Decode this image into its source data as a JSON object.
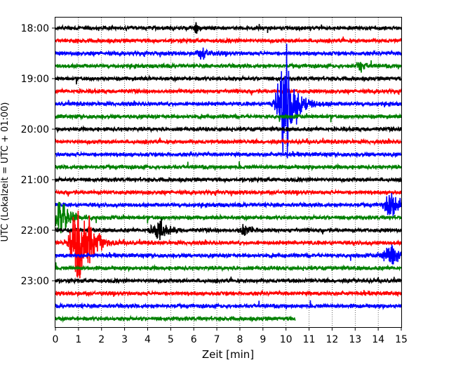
{
  "chart_data": {
    "type": "line",
    "title": "",
    "xlabel": "Zeit  [min]",
    "ylabel": "UTC (Lokalzeit = UTC + 01:00)",
    "xlim": [
      0,
      15
    ],
    "x_ticks": [
      "0",
      "1",
      "2",
      "3",
      "4",
      "5",
      "6",
      "7",
      "8",
      "9",
      "10",
      "11",
      "12",
      "13",
      "14",
      "15"
    ],
    "y_ticks": [
      {
        "label": "18:00",
        "trace": 0
      },
      {
        "label": "19:00",
        "trace": 4
      },
      {
        "label": "20:00",
        "trace": 8
      },
      {
        "label": "21:00",
        "trace": 12
      },
      {
        "label": "22:00",
        "trace": 16
      },
      {
        "label": "23:00",
        "trace": 20
      }
    ],
    "grid": "vertical dotted at each minute",
    "legend": "none",
    "trace_interval_min": 15,
    "trace_count": 24,
    "colors": [
      "#000000",
      "#ff0000",
      "#0000ff",
      "#008000"
    ],
    "last_trace_end_min": 10.4,
    "events": [
      {
        "trace": 6,
        "center_min": 10.0,
        "amplitude": 2.9,
        "spread_min": 0.55
      },
      {
        "trace": 15,
        "center_min": 0.3,
        "amplitude": 0.9,
        "spread_min": 0.55
      },
      {
        "trace": 17,
        "center_min": 1.1,
        "amplitude": 2.6,
        "spread_min": 0.6
      },
      {
        "trace": 16,
        "center_min": 4.5,
        "amplitude": 0.5,
        "spread_min": 0.5
      },
      {
        "trace": 14,
        "center_min": 14.6,
        "amplitude": 0.55,
        "spread_min": 0.5
      },
      {
        "trace": 18,
        "center_min": 14.6,
        "amplitude": 0.5,
        "spread_min": 0.6
      },
      {
        "trace": 2,
        "center_min": 6.4,
        "amplitude": 0.25,
        "spread_min": 0.4
      },
      {
        "trace": 3,
        "center_min": 13.2,
        "amplitude": 0.3,
        "spread_min": 0.3
      },
      {
        "trace": 16,
        "center_min": 8.2,
        "amplitude": 0.35,
        "spread_min": 0.3
      },
      {
        "trace": 0,
        "center_min": 6.1,
        "amplitude": 0.3,
        "spread_min": 0.15
      }
    ]
  }
}
